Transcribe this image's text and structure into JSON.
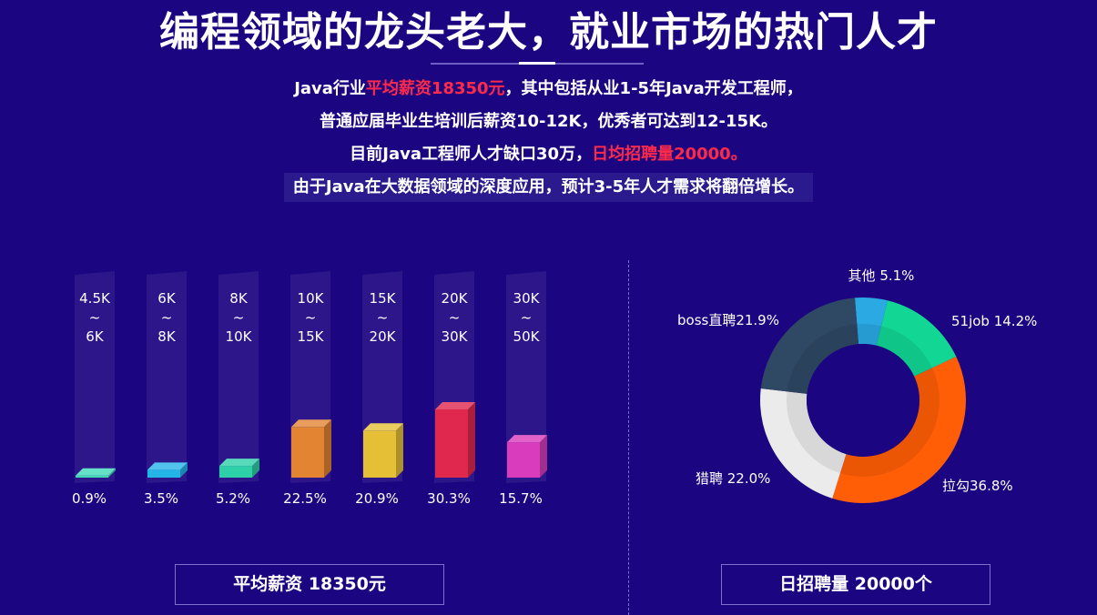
{
  "header": {
    "title": "编程领域的龙头老大，就业市场的热门人才",
    "intro": [
      {
        "parts": [
          {
            "text": "Java行业",
            "hl": false
          },
          {
            "text": "平均薪资18350元",
            "hl": true
          },
          {
            "text": "，其中包括从业1-5年Java开发工程师，",
            "hl": false
          }
        ]
      },
      {
        "parts": [
          {
            "text": "普通应届毕业生培训后薪资10-12K，优秀者可达到12-15K。",
            "hl": false
          }
        ]
      },
      {
        "parts": [
          {
            "text": "目前Java工程师人才缺口30万，",
            "hl": false
          },
          {
            "text": "日均招聘量20000。",
            "hl": true
          }
        ]
      },
      {
        "parts": [
          {
            "text": "由于Java在大数据领域的深度应用，预计3-5年人才需求将翻倍增长。",
            "hl": false
          }
        ],
        "boxed": true
      }
    ]
  },
  "footer": {
    "salary_label": "平均薪资 18350元",
    "hiring_label": "日招聘量 20000个"
  },
  "chart_data": [
    {
      "type": "bar",
      "categories": [
        [
          "4.5K",
          "~",
          "6K"
        ],
        [
          "6K",
          "~",
          "8K"
        ],
        [
          "8K",
          "~",
          "10K"
        ],
        [
          "10K",
          "~",
          "15K"
        ],
        [
          "15K",
          "~",
          "20K"
        ],
        [
          "20K",
          "~",
          "30K"
        ],
        [
          "30K",
          "~",
          "50K"
        ]
      ],
      "values": [
        0.9,
        3.5,
        5.2,
        22.5,
        20.9,
        30.3,
        15.7
      ],
      "value_labels": [
        "0.9%",
        "3.5%",
        "5.2%",
        "22.5%",
        "20.9%",
        "30.3%",
        "15.7%"
      ],
      "colors": [
        "#3fd9b8",
        "#25b4e8",
        "#2ed0a8",
        "#e38433",
        "#e5c037",
        "#e0284f",
        "#d93cbc"
      ],
      "ylim": [
        0,
        30.3
      ]
    },
    {
      "type": "pie",
      "style": "donut",
      "labels": [
        "其他 5.1%",
        "51job 14.2%",
        "拉勾36.8%",
        "猎聘 22.0%",
        "boss直聘21.9%"
      ],
      "values": [
        5.1,
        14.2,
        36.8,
        22.0,
        21.9
      ],
      "colors": [
        "#2aa9e3",
        "#12d694",
        "#ff5e06",
        "#ebebeb",
        "#2f4864"
      ]
    }
  ]
}
